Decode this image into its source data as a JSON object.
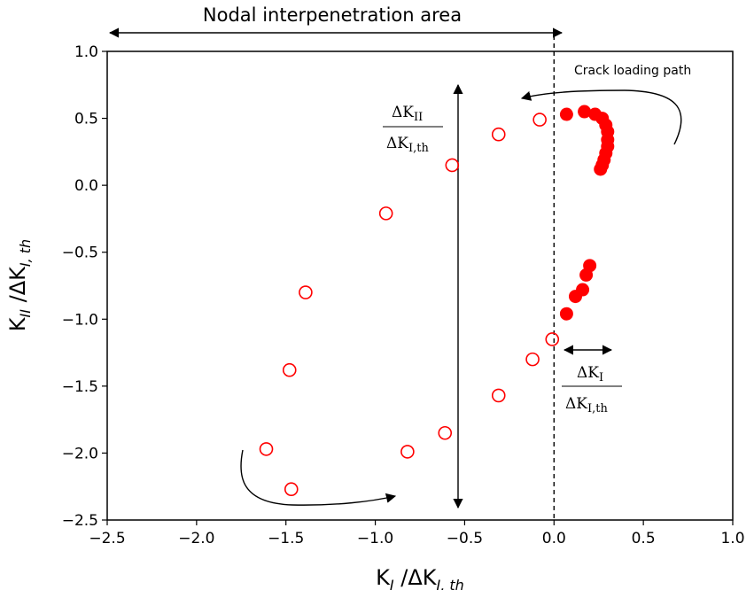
{
  "chart_data": {
    "type": "scatter",
    "xlabel": "K",
    "xlabel_sub": "I",
    "xlabel_mid": " /ΔK",
    "xlabel_sub2": "I, th",
    "ylabel": "K",
    "ylabel_sub": "II",
    "ylabel_mid": " /ΔK",
    "ylabel_sub2": "I, th",
    "xlim": [
      -2.5,
      1.0
    ],
    "ylim": [
      -2.5,
      1.0
    ],
    "x_ticks": [
      -2.5,
      -2.0,
      -1.5,
      -1.0,
      -0.5,
      0.0,
      0.5,
      1.0
    ],
    "x_tick_labels": [
      "−2.5",
      "−2.0",
      "−1.5",
      "−1.0",
      "−0.5",
      "0.0",
      "0.5",
      "1.0"
    ],
    "y_ticks": [
      1.0,
      0.5,
      0.0,
      -0.5,
      -1.0,
      -1.5,
      -2.0,
      -2.5
    ],
    "y_tick_labels": [
      "1.0",
      "0.5",
      "0.0",
      "−0.5",
      "−1.0",
      "−1.5",
      "−2.0",
      "−2.5"
    ],
    "grid": false,
    "marker_color": "#ff0000",
    "series": [
      {
        "marker": "open-circle",
        "points": [
          [
            -0.08,
            0.49
          ],
          [
            -0.31,
            0.38
          ],
          [
            -0.57,
            0.15
          ],
          [
            -0.94,
            -0.21
          ],
          [
            -1.39,
            -0.8
          ],
          [
            -1.48,
            -1.38
          ],
          [
            -1.61,
            -1.97
          ],
          [
            -1.47,
            -2.27
          ],
          [
            -0.82,
            -1.99
          ],
          [
            -0.61,
            -1.85
          ],
          [
            -0.31,
            -1.57
          ],
          [
            -0.12,
            -1.3
          ],
          [
            -0.01,
            -1.15
          ]
        ]
      },
      {
        "marker": "filled-circle",
        "points": [
          [
            0.07,
            0.53
          ],
          [
            0.17,
            0.55
          ],
          [
            0.23,
            0.53
          ],
          [
            0.27,
            0.5
          ],
          [
            0.29,
            0.45
          ],
          [
            0.3,
            0.4
          ],
          [
            0.3,
            0.34
          ],
          [
            0.3,
            0.29
          ],
          [
            0.29,
            0.24
          ],
          [
            0.28,
            0.19
          ],
          [
            0.27,
            0.15
          ],
          [
            0.26,
            0.12
          ],
          [
            0.2,
            -0.6
          ],
          [
            0.18,
            -0.67
          ],
          [
            0.16,
            -0.78
          ],
          [
            0.12,
            -0.83
          ],
          [
            0.07,
            -0.96
          ]
        ]
      }
    ],
    "vline_x": 0.0,
    "annotations": {
      "nodal_area": "Nodal interpenetration area",
      "crack_path": "Crack loading path",
      "dkii_num": "ΔK",
      "dkii_num_sub": "II",
      "dkii_den": "ΔK",
      "dkii_den_sub": "I,th",
      "dki_num": "ΔK",
      "dki_num_sub": "I",
      "dki_den": "ΔK",
      "dki_den_sub": "I,th"
    }
  }
}
